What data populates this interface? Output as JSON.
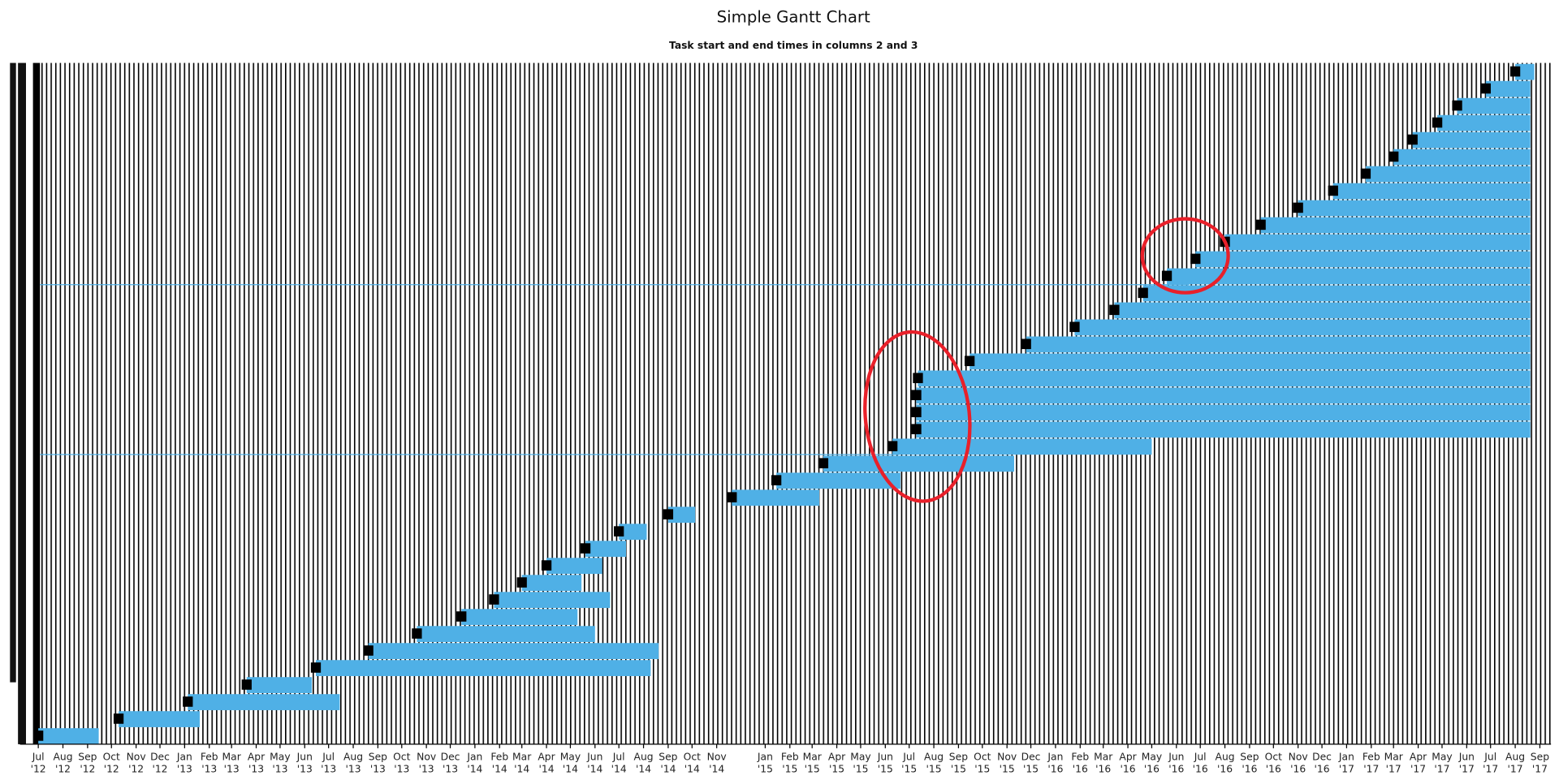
{
  "chart_data": {
    "type": "gantt",
    "title": "Simple Gantt Chart",
    "subtitle": "Task start and end times in columns 2 and 3",
    "color": "#4fb0e6",
    "start_color": "#000000",
    "xlim": [
      "2012-06-08",
      "2017-09-15"
    ],
    "xticks": [
      {
        "value": "2012-07-01",
        "label": "Jul '12"
      },
      {
        "value": "2012-08-01",
        "label": "Aug '12"
      },
      {
        "value": "2012-09-01",
        "label": "Sep '12"
      },
      {
        "value": "2012-10-01",
        "label": "Oct '12"
      },
      {
        "value": "2012-11-01",
        "label": "Nov '12"
      },
      {
        "value": "2012-12-01",
        "label": "Dec '12"
      },
      {
        "value": "2013-01-01",
        "label": "Jan '13"
      },
      {
        "value": "2013-02-01",
        "label": "Feb '13"
      },
      {
        "value": "2013-03-01",
        "label": "Mar '13"
      },
      {
        "value": "2013-04-01",
        "label": "Apr '13"
      },
      {
        "value": "2013-05-01",
        "label": "May '13"
      },
      {
        "value": "2013-06-01",
        "label": "Jun '13"
      },
      {
        "value": "2013-07-01",
        "label": "Jul '13"
      },
      {
        "value": "2013-08-01",
        "label": "Aug '13"
      },
      {
        "value": "2013-09-01",
        "label": "Sep '13"
      },
      {
        "value": "2013-10-01",
        "label": "Oct '13"
      },
      {
        "value": "2013-11-01",
        "label": "Nov '13"
      },
      {
        "value": "2013-12-01",
        "label": "Dec '13"
      },
      {
        "value": "2014-01-01",
        "label": "Jan '14"
      },
      {
        "value": "2014-02-01",
        "label": "Feb '14"
      },
      {
        "value": "2014-03-01",
        "label": "Mar '14"
      },
      {
        "value": "2014-04-01",
        "label": "Apr '14"
      },
      {
        "value": "2014-05-01",
        "label": "May '14"
      },
      {
        "value": "2014-06-01",
        "label": "Jun '14"
      },
      {
        "value": "2014-07-01",
        "label": "Jul '14"
      },
      {
        "value": "2014-08-01",
        "label": "Aug '14"
      },
      {
        "value": "2014-09-01",
        "label": "Sep '14"
      },
      {
        "value": "2014-10-01",
        "label": "Oct '14"
      },
      {
        "value": "2014-11-01",
        "label": "Nov '14"
      },
      {
        "value": "2015-01-01",
        "label": "Jan '15"
      },
      {
        "value": "2015-02-01",
        "label": "Feb '15"
      },
      {
        "value": "2015-03-01",
        "label": "Mar '15"
      },
      {
        "value": "2015-04-01",
        "label": "Apr '15"
      },
      {
        "value": "2015-05-01",
        "label": "May '15"
      },
      {
        "value": "2015-06-01",
        "label": "Jun '15"
      },
      {
        "value": "2015-07-01",
        "label": "Jul '15"
      },
      {
        "value": "2015-08-01",
        "label": "Aug '15"
      },
      {
        "value": "2015-09-01",
        "label": "Sep '15"
      },
      {
        "value": "2015-10-01",
        "label": "Oct '15"
      },
      {
        "value": "2015-11-01",
        "label": "Nov '15"
      },
      {
        "value": "2015-12-01",
        "label": "Dec '15"
      },
      {
        "value": "2016-01-01",
        "label": "Jan '16"
      },
      {
        "value": "2016-02-01",
        "label": "Feb '16"
      },
      {
        "value": "2016-03-01",
        "label": "Mar '16"
      },
      {
        "value": "2016-04-01",
        "label": "Apr '16"
      },
      {
        "value": "2016-05-01",
        "label": "May '16"
      },
      {
        "value": "2016-06-01",
        "label": "Jun '16"
      },
      {
        "value": "2016-07-01",
        "label": "Jul '16"
      },
      {
        "value": "2016-08-01",
        "label": "Aug '16"
      },
      {
        "value": "2016-09-01",
        "label": "Sep '16"
      },
      {
        "value": "2016-10-01",
        "label": "Oct '16"
      },
      {
        "value": "2016-11-01",
        "label": "Nov '16"
      },
      {
        "value": "2016-12-01",
        "label": "Dec '16"
      },
      {
        "value": "2017-01-01",
        "label": "Jan '17"
      },
      {
        "value": "2017-02-01",
        "label": "Feb '17"
      },
      {
        "value": "2017-03-01",
        "label": "Mar '17"
      },
      {
        "value": "2017-04-01",
        "label": "Apr '17"
      },
      {
        "value": "2017-05-01",
        "label": "May '17"
      },
      {
        "value": "2017-06-01",
        "label": "Jun '17"
      },
      {
        "value": "2017-07-01",
        "label": "Jul '17"
      },
      {
        "value": "2017-08-01",
        "label": "Aug '17"
      },
      {
        "value": "2017-09-01",
        "label": "Sep '17"
      }
    ],
    "start": [
      "2012-07-01",
      "2012-10-10",
      "2013-01-05",
      "2013-03-20",
      "2013-06-15",
      "2013-08-20",
      "2013-10-20",
      "2013-12-15",
      "2014-01-25",
      "2014-03-01",
      "2014-04-01",
      "2014-05-20",
      "2014-07-01",
      "2014-09-01",
      "2014-11-20",
      "2015-01-15",
      "2015-03-15",
      "2015-06-10",
      "2015-07-10",
      "2015-07-10",
      "2015-07-10",
      "2015-07-12",
      "2015-09-15",
      "2015-11-25",
      "2016-01-25",
      "2016-03-15",
      "2016-04-20",
      "2016-05-20",
      "2016-06-25",
      "2016-08-01",
      "2016-09-15",
      "2016-11-01",
      "2016-12-15",
      "2017-01-25",
      "2017-03-01",
      "2017-03-25",
      "2017-04-25",
      "2017-05-20",
      "2017-06-25",
      "2017-08-01"
    ],
    "end": [
      "2012-09-15",
      "2013-01-20",
      "2013-07-15",
      "2013-06-10",
      "2014-08-10",
      "2014-08-20",
      "2014-06-01",
      "2014-05-10",
      "2014-06-20",
      "2014-05-15",
      "2014-06-10",
      "2014-07-10",
      "2014-08-05",
      "2014-10-05",
      "2015-03-10",
      "2015-06-20",
      "2015-11-10",
      "2016-05-01",
      "2017-08-20",
      "2017-08-20",
      "2017-08-20",
      "2017-08-20",
      "2017-08-20",
      "2017-08-20",
      "2017-08-20",
      "2017-08-20",
      "2017-08-20",
      "2017-08-20",
      "2017-08-20",
      "2017-08-20",
      "2017-08-20",
      "2017-08-20",
      "2017-08-20",
      "2017-08-20",
      "2017-08-20",
      "2017-08-20",
      "2017-08-20",
      "2017-08-20",
      "2017-08-20",
      "2017-08-25"
    ]
  }
}
